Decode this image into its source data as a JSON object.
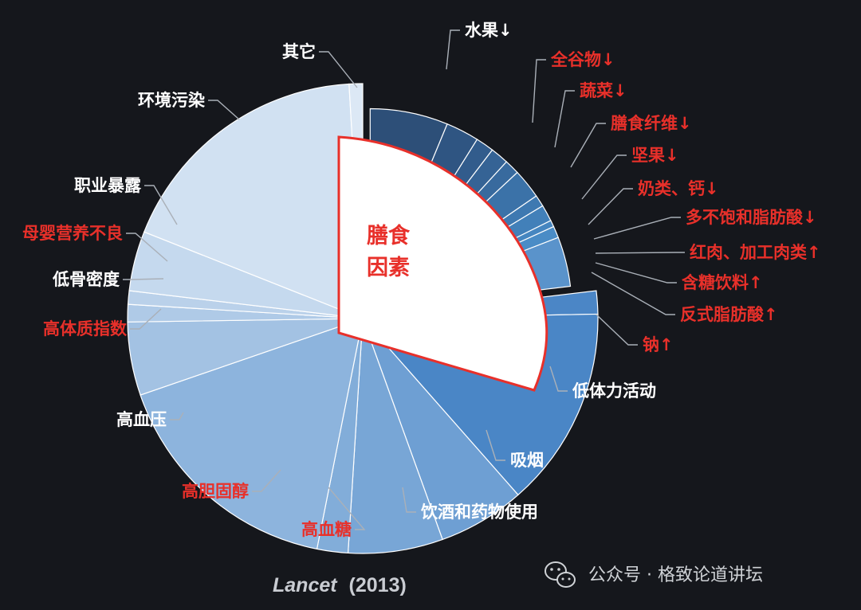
{
  "chart_data": {
    "type": "pie",
    "title": "",
    "center_label": [
      "膳食",
      "因素"
    ],
    "slices": [
      {
        "label": "水果↓",
        "value": 4.7,
        "color": "#2d4f78",
        "group": "diet",
        "label_color": "white"
      },
      {
        "label": "全谷物↓",
        "value": 2.0,
        "color": "#2f5582",
        "group": "diet",
        "label_color": "red"
      },
      {
        "label": "蔬菜↓",
        "value": 1.1,
        "color": "#325c8c",
        "group": "diet",
        "label_color": "red"
      },
      {
        "label": "膳食纤维↓",
        "value": 1.1,
        "color": "#356395",
        "group": "diet",
        "label_color": "red"
      },
      {
        "label": "坚果↓",
        "value": 0.9,
        "color": "#386a9e",
        "group": "diet",
        "label_color": "red"
      },
      {
        "label": "奶类、钙↓",
        "value": 1.8,
        "color": "#3b72a8",
        "group": "diet",
        "label_color": "red"
      },
      {
        "label": "多不饱和脂肪酸↓",
        "value": 0.7,
        "color": "#3e79b1",
        "group": "diet",
        "label_color": "red"
      },
      {
        "label": "红肉、加工肉类↑",
        "value": 1.0,
        "color": "#4280b9",
        "group": "diet",
        "label_color": "red"
      },
      {
        "label": "含糖饮料↑",
        "value": 0.4,
        "color": "#4686c0",
        "group": "diet",
        "label_color": "red"
      },
      {
        "label": "反式脂肪酸↑",
        "value": 0.7,
        "color": "#4a8cc6",
        "group": "diet",
        "label_color": "red"
      },
      {
        "label": "钠↑",
        "value": 3.0,
        "color": "#5a93cb",
        "group": "diet",
        "label_color": "red"
      },
      {
        "label": "低体力活动",
        "value": 1.2,
        "color": "#4b86c6",
        "group": "other",
        "label_color": "white"
      },
      {
        "label": "吸烟",
        "value": 10.4,
        "color": "#4a86c6",
        "group": "other",
        "label_color": "white"
      },
      {
        "label": "饮酒和药物使用",
        "value": 4.5,
        "color": "#6e9fd3",
        "group": "other",
        "label_color": "white"
      },
      {
        "label": "高血糖",
        "value": 4.9,
        "color": "#78a6d6",
        "group": "other",
        "label_color": "red"
      },
      {
        "label": "高胆固醇",
        "value": 1.6,
        "color": "#82add9",
        "group": "other",
        "label_color": "red"
      },
      {
        "label": "高血压",
        "value": 12.5,
        "color": "#8db4dd",
        "group": "other",
        "label_color": "white"
      },
      {
        "label": "高体质指数",
        "value": 3.8,
        "color": "#a3c2e3",
        "group": "other",
        "label_color": "red"
      },
      {
        "label": "低骨密度",
        "value": 0.9,
        "color": "#afcae7",
        "group": "other",
        "label_color": "white"
      },
      {
        "label": "母婴营养不良",
        "value": 0.7,
        "color": "#bad1ea",
        "group": "other",
        "label_color": "red"
      },
      {
        "label": "职业暴露",
        "value": 3.1,
        "color": "#c5d9ee",
        "group": "other",
        "label_color": "white"
      },
      {
        "label": "环境污染",
        "value": 13.6,
        "color": "#d1e1f2",
        "group": "other",
        "label_color": "white"
      },
      {
        "label": "其它",
        "value": 0.7,
        "color": "#dce8f5",
        "group": "other",
        "label_color": "white"
      }
    ]
  },
  "source": {
    "journal": "Lancet",
    "year": "(2013)"
  },
  "watermark": "公众号 · 格致论道讲坛",
  "colors": {
    "label_red": "#e8302a",
    "label_white": "#ffffff",
    "background": "#15171c",
    "highlight_border": "#e8302a"
  }
}
